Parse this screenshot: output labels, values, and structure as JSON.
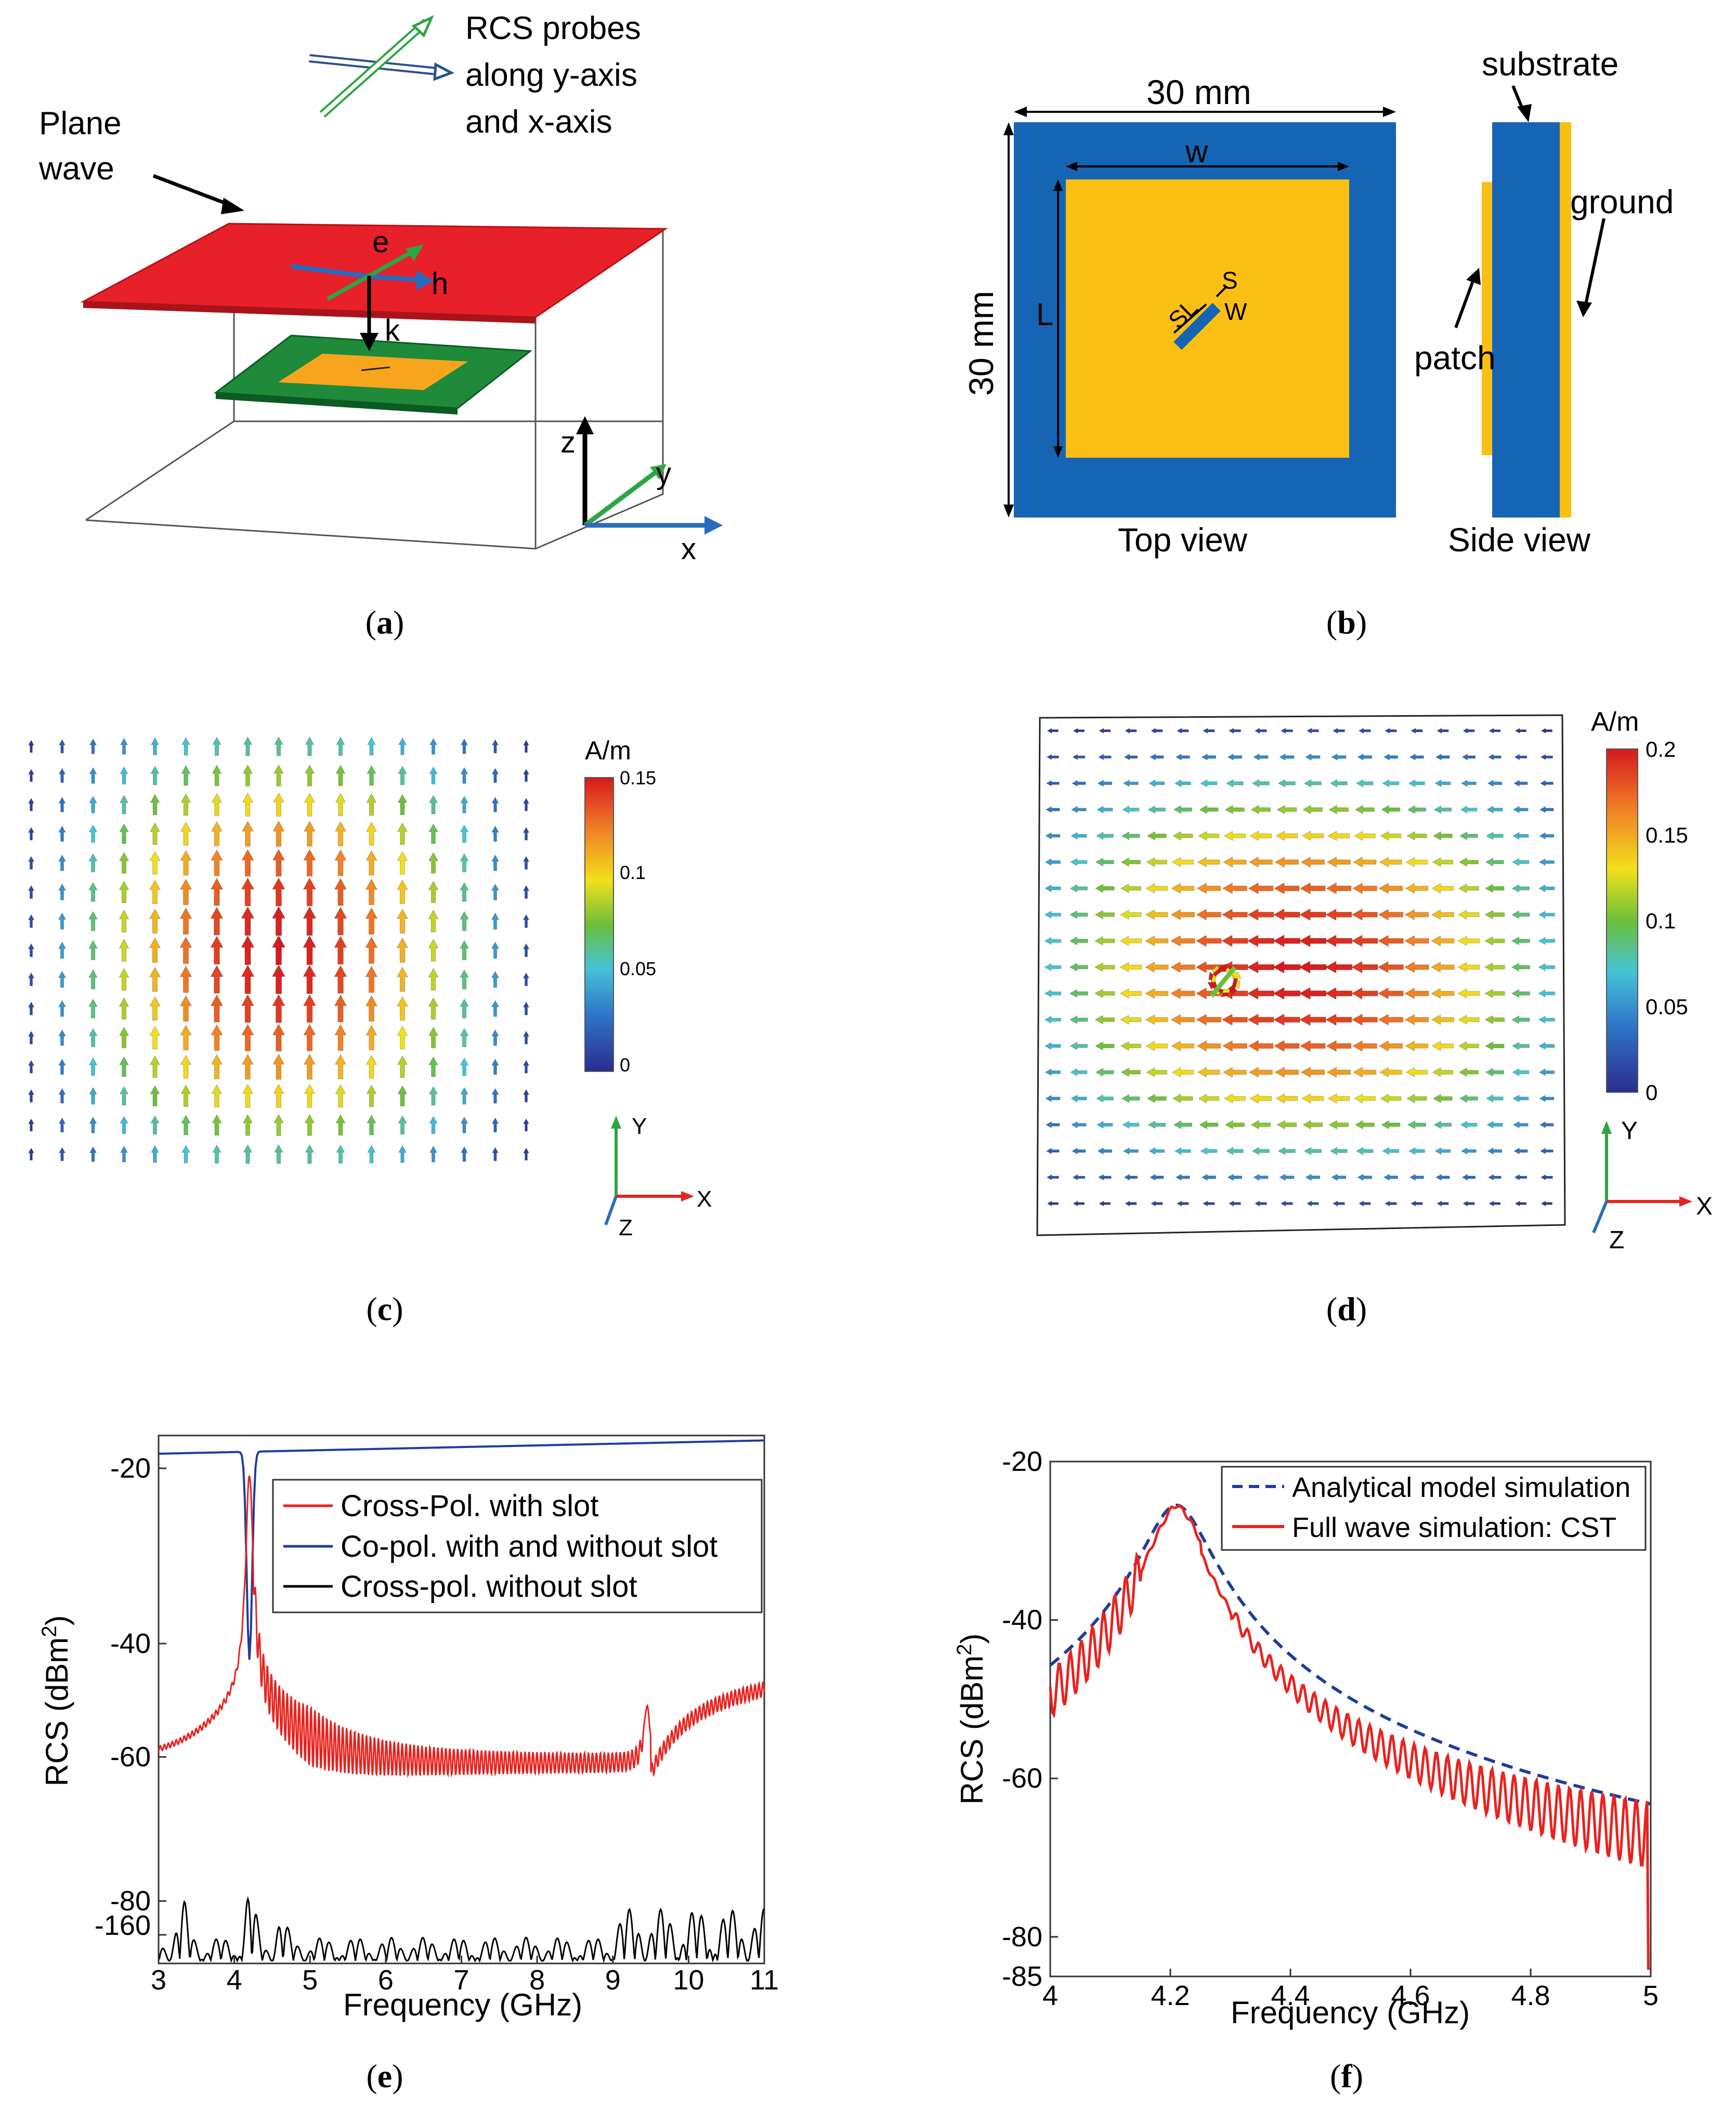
{
  "panel_a": {
    "caption": "(a)",
    "probe_label_1": "RCS probes",
    "probe_label_2": "along y-axis",
    "probe_label_3": "and x-axis",
    "plane_label_1": "Plane",
    "plane_label_2": "wave",
    "e_label": "e",
    "h_label": "h",
    "k_label": "k",
    "z_label": "z",
    "y_label": "y",
    "x_label": "x"
  },
  "panel_b": {
    "caption": "(b)",
    "width_label": "30 mm",
    "height_label": "30 mm",
    "w_label": "w",
    "l_label": "L",
    "sl_label": "SL",
    "s_label": "S",
    "slot_w_label": "W",
    "top_view": "Top view",
    "side_view": "Side view",
    "substrate_label": "substrate",
    "ground_label": "ground",
    "patch_label": "patch",
    "colors": {
      "substrate": "#1565b4",
      "patch": "#fbbf14"
    }
  },
  "panel_c": {
    "caption": "(c)",
    "unit": "A/m",
    "cbar_ticks": [
      "0.15",
      "0.1",
      "0.05",
      "0"
    ],
    "axis_y": "Y",
    "axis_x": "X",
    "axis_z": "Z"
  },
  "panel_d": {
    "caption": "(d)",
    "unit": "A/m",
    "cbar_ticks": [
      "0.2",
      "0.15",
      "0.1",
      "0.05",
      "0"
    ],
    "axis_y": "Y",
    "axis_x": "X",
    "axis_z": "Z"
  },
  "chart_data": [
    {
      "type": "line",
      "panel": "e",
      "caption": "(e)",
      "xlabel": "Frequency (GHz)",
      "ylabel": "RCS (dBm",
      "ylabel_sup": "2",
      "ylabel_end": ")",
      "xlim": [
        3,
        11
      ],
      "x_ticks": [
        "3",
        "4",
        "5",
        "6",
        "7",
        "8",
        "9",
        "10",
        "11"
      ],
      "y_ticks": [
        "-20",
        "-40",
        "-60",
        "-80",
        "-160"
      ],
      "series": [
        {
          "name": "Cross-Pol. with slot",
          "color": "#e8231f"
        },
        {
          "name": "Co-pol. with and without slot",
          "color": "#1f3c9c"
        },
        {
          "name": "Cross-pol. without slot",
          "color": "#000000"
        }
      ]
    },
    {
      "type": "line",
      "panel": "f",
      "caption": "(f)",
      "xlabel": "Frequency (GHz)",
      "ylabel": "RCS (dBm",
      "ylabel_sup": "2",
      "ylabel_end": ")",
      "xlim": [
        4,
        5
      ],
      "ylim": [
        -85,
        -20
      ],
      "x_ticks": [
        "4",
        "4.2",
        "4.4",
        "4.6",
        "4.8",
        "5"
      ],
      "y_ticks": [
        "-20",
        "-40",
        "-60",
        "-80",
        "-85"
      ],
      "series": [
        {
          "name": "Analytical model simulation",
          "color": "#1f3c9c",
          "dash": true
        },
        {
          "name": "Full wave simulation: CST",
          "color": "#e8231f"
        }
      ]
    }
  ]
}
